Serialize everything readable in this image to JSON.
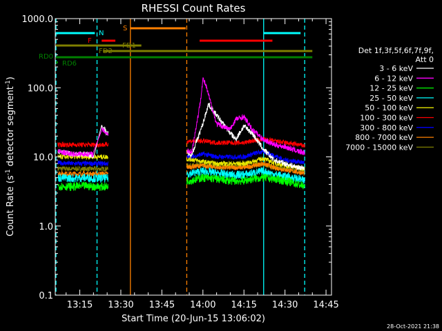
{
  "chart_data": {
    "type": "line",
    "title": "RHESSI Count Rates",
    "xlabel": "Start Time (20-Jun-15 13:06:02)",
    "ylabel_parts": {
      "pre": "Count Rate (s",
      "exp": "-1",
      "mid": " detector segment",
      "exp2": "-1",
      "post": ")"
    },
    "timestamp": "28-Oct-2021 21:38",
    "y_scale": "log",
    "ylim": [
      0.1,
      1000
    ],
    "xlim_min": [
      786,
      1726
    ],
    "y_ticks": [
      {
        "v": 0.1,
        "label": "0.1"
      },
      {
        "v": 1,
        "label": "1.0"
      },
      {
        "v": 10,
        "label": "10.0"
      },
      {
        "v": 100,
        "label": "100.0"
      },
      {
        "v": 1000,
        "label": "1000.0"
      }
    ],
    "x_ticks": [
      {
        "v": 795,
        "label": "13:15"
      },
      {
        "v": 810,
        "label": "13:30"
      },
      {
        "v": 825,
        "label": "13:45"
      },
      {
        "v": 840,
        "label": "14:00"
      },
      {
        "v": 855,
        "label": "14:15"
      },
      {
        "v": 870,
        "label": "14:30"
      },
      {
        "v": 885,
        "label": "14:45"
      }
    ],
    "legend": {
      "header1": "Det 1f,3f,5f,6f,7f,9f,",
      "header2": "Att 0",
      "placement": "right",
      "entries": [
        {
          "label": "3 - 6 keV",
          "color": "#ffffff"
        },
        {
          "label": "6 - 12 keV",
          "color": "#ff00ff"
        },
        {
          "label": "12 - 25 keV",
          "color": "#00ff00"
        },
        {
          "label": "25 - 50 keV",
          "color": "#00ffff"
        },
        {
          "label": "50 - 100 keV",
          "color": "#e6e600"
        },
        {
          "label": "100 - 300 keV",
          "color": "#ff0000"
        },
        {
          "label": "300 - 800 keV",
          "color": "#0000ff"
        },
        {
          "label": "800 - 7000 keV",
          "color": "#ff8000"
        },
        {
          "label": "7000 - 15000 keV",
          "color": "#808000"
        }
      ]
    },
    "vertical_lines": [
      {
        "t": 786.3,
        "color": "#00ffff",
        "style": "dashed"
      },
      {
        "t": 801.3,
        "color": "#00ffff",
        "style": "dashed"
      },
      {
        "t": 813.5,
        "color": "#ff8000",
        "style": "solid"
      },
      {
        "t": 834.1,
        "color": "#ff8000",
        "style": "dashed"
      },
      {
        "t": 862.2,
        "color": "#00ffff",
        "style": "solid"
      },
      {
        "t": 877.2,
        "color": "#00ffff",
        "style": "dashed"
      }
    ],
    "flag_bars": [
      {
        "label": "N",
        "color": "#00ffff",
        "segments": [
          [
            786.3,
            800.5
          ],
          [
            862.2,
            875.7
          ]
        ],
        "y": 1000,
        "label_t": 802
      },
      {
        "label": "S",
        "color": "#ff8000",
        "segments": [
          [
            813.5,
            833.7
          ]
        ],
        "y": 1000,
        "label_t": 810
      },
      {
        "label": "F",
        "color": "#ff0000",
        "segments": [
          [
            803,
            808
          ],
          [
            838.8,
            865.4
          ]
        ],
        "y": 1000,
        "label_t": 800.5
      },
      {
        "label": "FD1",
        "color": "#808000",
        "segments": [
          [
            786.3,
            817.5
          ]
        ],
        "y": 1000,
        "label_t": 819
      },
      {
        "label": "FD2",
        "color": "#808000",
        "segments": [
          [
            803.5,
            880
          ]
        ],
        "y": 1000,
        "label_t": 800.5
      },
      {
        "label": "RD0",
        "color": "#008000",
        "segments": [
          [
            786.3,
            880
          ]
        ],
        "y": 1000,
        "label_t": 780
      },
      {
        "label": "RD6",
        "color": "#008000",
        "segments": [
          [
            786.3,
            786.6
          ]
        ],
        "y": 1000,
        "label_t": 789
      }
    ],
    "data_gaps": [
      [
        805.4,
        834.1
      ]
    ],
    "series": [
      {
        "name": "3 - 6 keV",
        "color": "#ffffff",
        "t": [
          787,
          792,
          797,
          801,
          803,
          805,
          810,
          836,
          840,
          842,
          845,
          850,
          852,
          855,
          858,
          862,
          866,
          870,
          875,
          879
        ],
        "values": [
          12,
          11,
          11,
          10,
          28,
          22,
          17,
          11,
          30,
          58,
          40,
          22,
          18,
          28,
          22,
          13,
          9,
          8,
          7,
          7
        ]
      },
      {
        "name": "6 - 12 keV",
        "color": "#ff00ff",
        "t": [
          787,
          792,
          797,
          801,
          803,
          805,
          810,
          836,
          839,
          840,
          841,
          842,
          845,
          850,
          852,
          855,
          858,
          862,
          866,
          870,
          875,
          879
        ],
        "values": [
          12,
          11,
          11,
          11,
          25,
          22,
          14,
          12,
          60,
          135,
          110,
          80,
          30,
          25,
          35,
          38,
          25,
          18,
          15,
          14,
          12,
          11
        ]
      },
      {
        "name": "12 - 25 keV",
        "color": "#00ff00",
        "t": [
          787,
          792,
          797,
          801,
          805,
          810,
          836,
          840,
          845,
          850,
          855,
          858,
          862,
          866,
          870,
          875,
          879
        ],
        "values": [
          3.8,
          3.7,
          3.8,
          3.7,
          3.7,
          3.8,
          4.6,
          5,
          4.8,
          4.5,
          4.5,
          4.8,
          5,
          4.8,
          4.5,
          4,
          3.5
        ]
      },
      {
        "name": "25 - 50 keV",
        "color": "#00ffff",
        "t": [
          787,
          792,
          797,
          801,
          805,
          810,
          836,
          840,
          845,
          850,
          855,
          858,
          862,
          866,
          870,
          875,
          879
        ],
        "values": [
          5.0,
          4.9,
          5.0,
          4.9,
          4.9,
          5.0,
          5.8,
          6.2,
          5.8,
          5.5,
          5.5,
          5.8,
          6.2,
          5.6,
          5.2,
          4.8,
          4.2
        ]
      },
      {
        "name": "50 - 100 keV",
        "color": "#e6e600",
        "t": [
          787,
          792,
          797,
          801,
          805,
          810,
          836,
          840,
          845,
          850,
          855,
          858,
          862,
          866,
          870,
          875,
          879
        ],
        "values": [
          10,
          10,
          10,
          10,
          10,
          10,
          9.2,
          8.5,
          8,
          8,
          8,
          8.5,
          9.5,
          8.2,
          7.5,
          7,
          6.5
        ]
      },
      {
        "name": "100 - 300 keV",
        "color": "#ff0000",
        "t": [
          787,
          792,
          797,
          801,
          805,
          810,
          836,
          840,
          845,
          850,
          855,
          858,
          862,
          866,
          870,
          875,
          879
        ],
        "values": [
          15,
          15,
          15,
          15,
          15,
          15,
          17,
          17,
          16,
          16,
          16,
          17,
          18,
          17,
          16,
          15,
          14
        ]
      },
      {
        "name": "300 - 800 keV",
        "color": "#0000ff",
        "t": [
          787,
          792,
          797,
          801,
          805,
          810,
          836,
          840,
          845,
          850,
          855,
          858,
          862,
          866,
          870,
          875,
          879
        ],
        "values": [
          8.2,
          8,
          8,
          8,
          8,
          8.2,
          10,
          11,
          10,
          10,
          10,
          11,
          12,
          10.5,
          9,
          8.5,
          8
        ]
      },
      {
        "name": "800 - 7000 keV",
        "color": "#ff8000",
        "t": [
          787,
          792,
          797,
          801,
          805,
          810,
          836,
          840,
          845,
          850,
          855,
          858,
          862,
          866,
          870,
          875,
          879
        ],
        "values": [
          5.8,
          5.7,
          5.7,
          5.7,
          5.7,
          5.8,
          7.2,
          7.5,
          7,
          7,
          7,
          7.4,
          8,
          7,
          6.5,
          6,
          5.5
        ]
      },
      {
        "name": "7000 - 15000 keV",
        "color": "#808000",
        "t": [
          787,
          792,
          797,
          801,
          805,
          810,
          836,
          840,
          845,
          850,
          855,
          858,
          862,
          866,
          870,
          875,
          879
        ],
        "values": [
          6.8,
          6.7,
          6.7,
          6.7,
          6.7,
          6.8,
          7.5,
          7.5,
          7.2,
          7.2,
          7.2,
          7.4,
          7.8,
          7,
          6.8,
          6.5,
          6
        ]
      }
    ]
  }
}
